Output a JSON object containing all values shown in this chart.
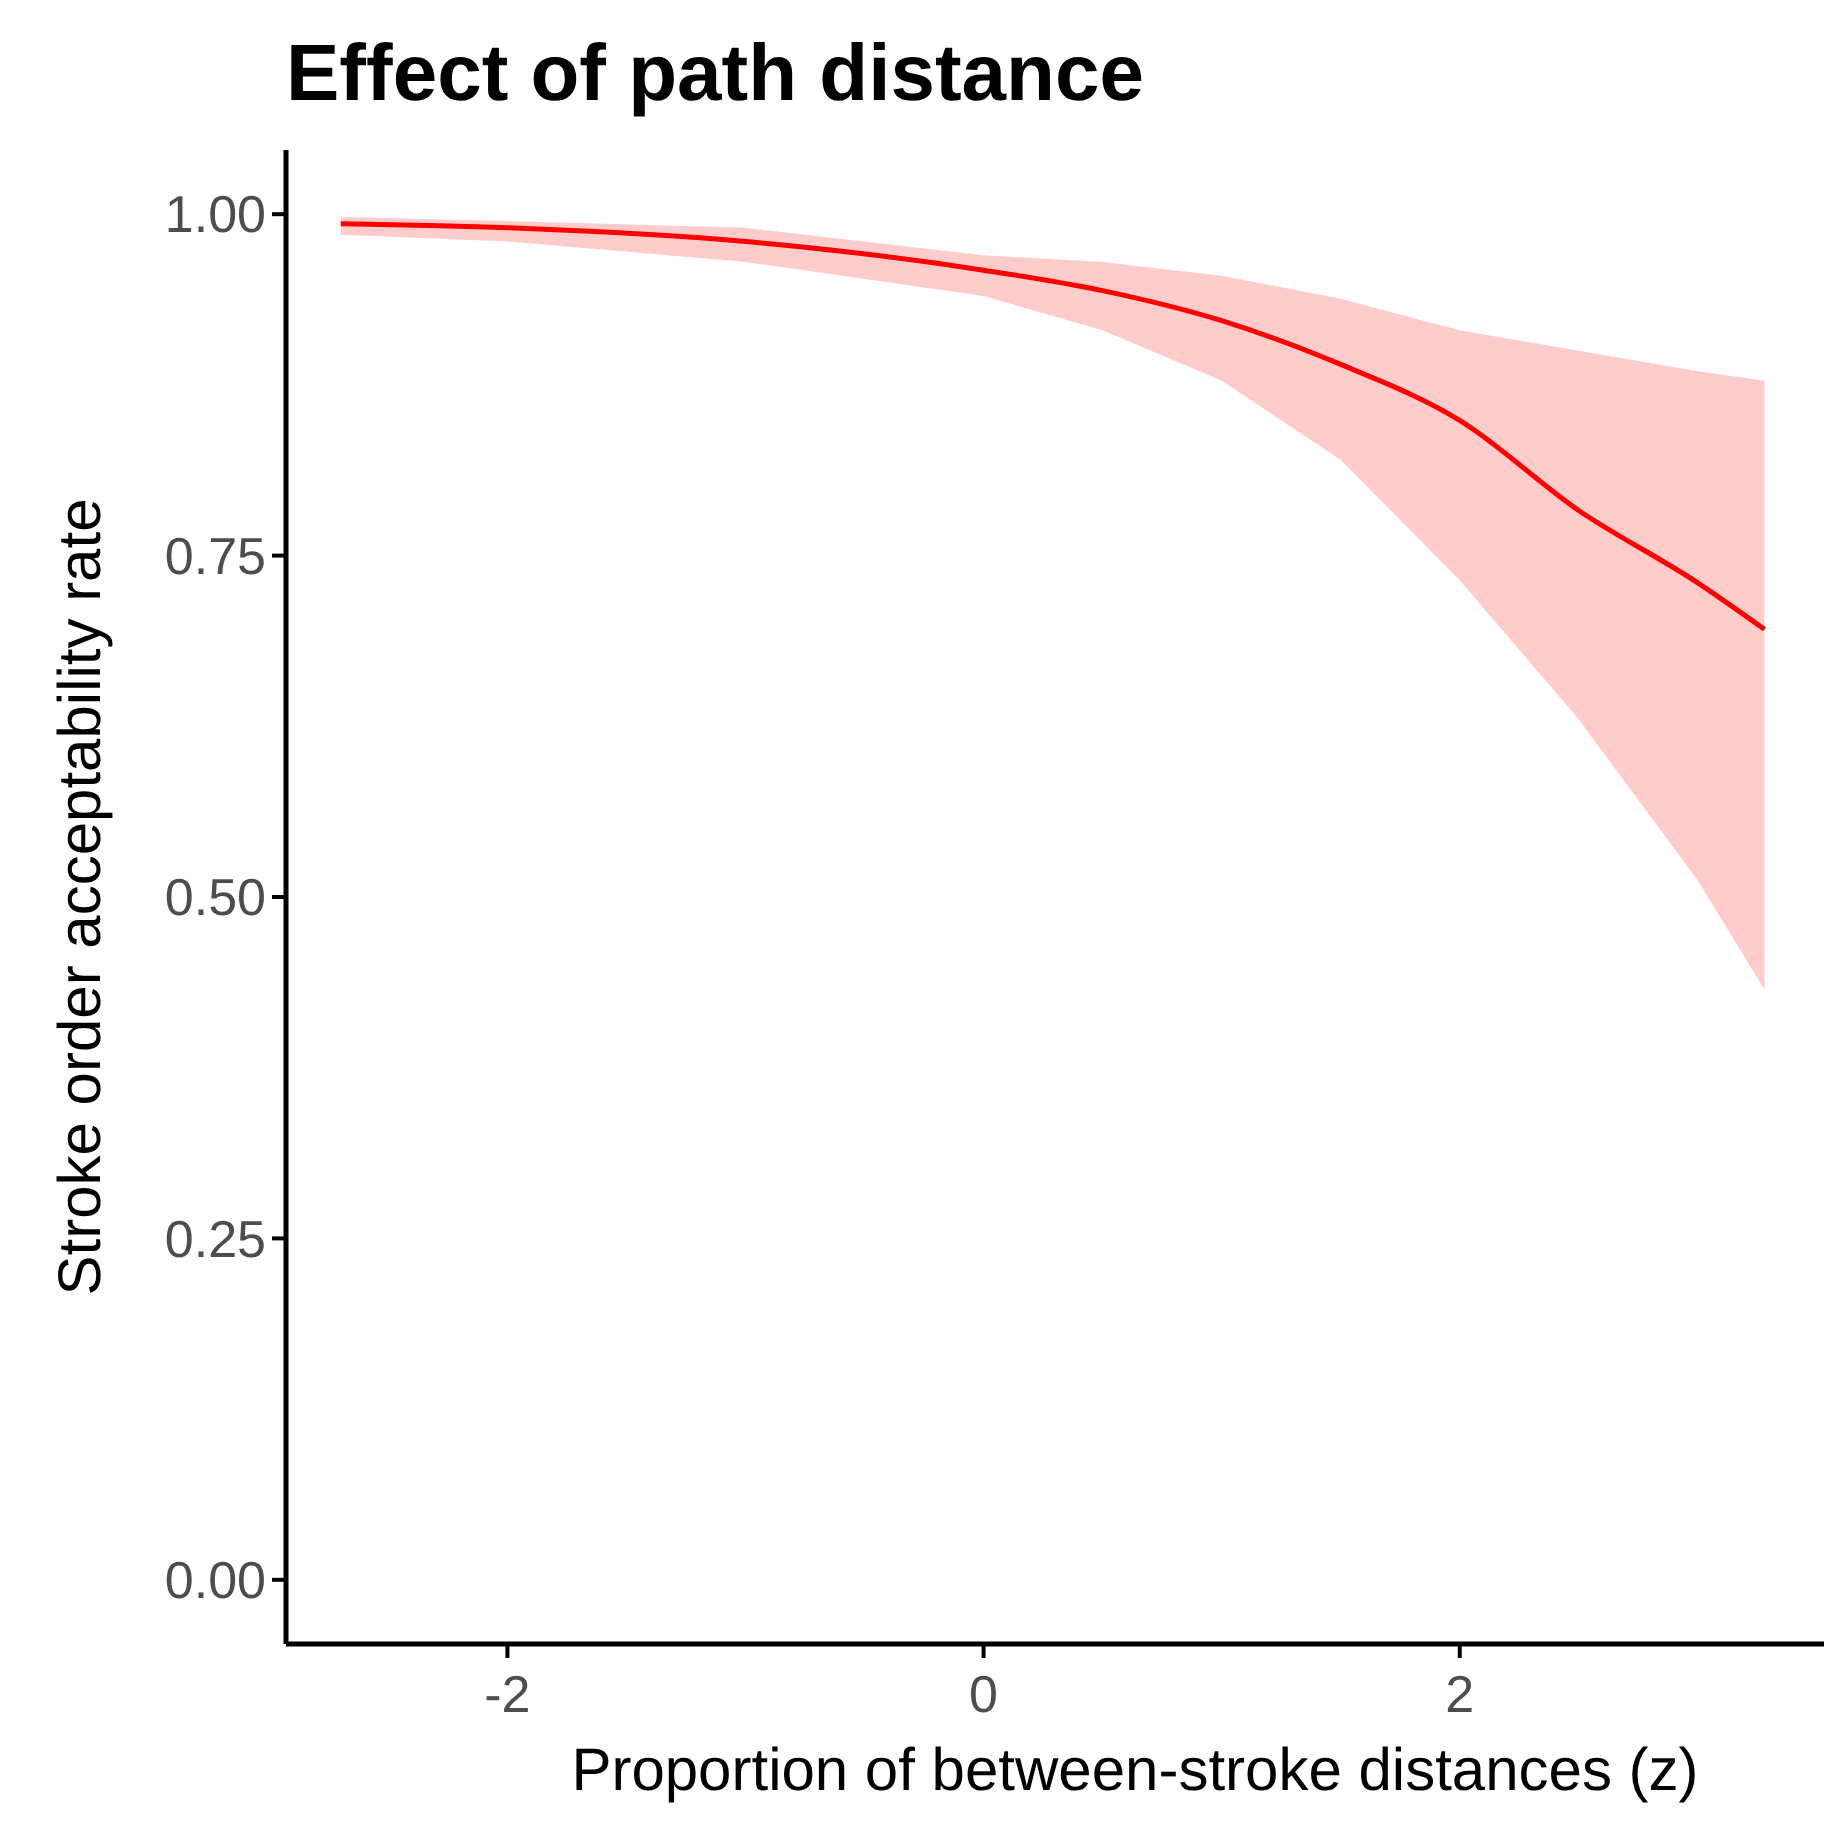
{
  "chart_data": {
    "type": "line",
    "title": "Effect of path distance",
    "xlabel": "Proportion of between-stroke distances (z)",
    "ylabel": "Stroke order acceptability rate",
    "xlim": [
      -2.93,
      3.53
    ],
    "xticks": [
      -2,
      0,
      2
    ],
    "ylim": [
      -0.047,
      1.047
    ],
    "yticks": [
      {
        "value": 0,
        "label": "0.00"
      },
      {
        "value": 0.25,
        "label": "0.25"
      },
      {
        "value": 0.5,
        "label": "0.50"
      },
      {
        "value": 0.75,
        "label": "0.75"
      },
      {
        "value": 1,
        "label": "1.00"
      }
    ],
    "grid": false,
    "series": [
      {
        "color": "#ff0000",
        "x": [
          -2.7,
          -2,
          -1,
          0,
          0.5,
          1,
          1.5,
          2,
          2.5,
          3,
          3.28
        ],
        "values": [
          0.993,
          0.99,
          0.98,
          0.959,
          0.944,
          0.922,
          0.89,
          0.849,
          0.783,
          0.73,
          0.696
        ],
        "lower": [
          0.985,
          0.98,
          0.965,
          0.94,
          0.915,
          0.878,
          0.82,
          0.732,
          0.63,
          0.512,
          0.432
        ],
        "upper": [
          0.998,
          0.995,
          0.99,
          0.97,
          0.965,
          0.955,
          0.938,
          0.915,
          0.9,
          0.885,
          0.878
        ]
      }
    ]
  }
}
